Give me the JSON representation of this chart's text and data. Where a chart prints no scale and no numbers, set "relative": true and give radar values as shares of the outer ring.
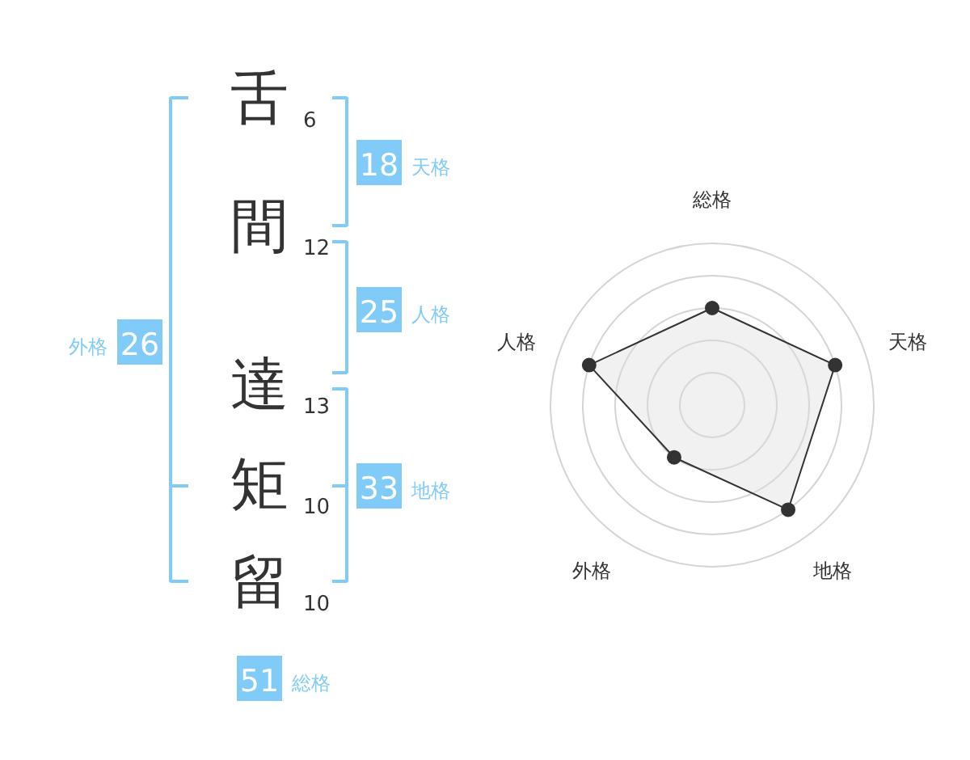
{
  "chart_data": [
    {
      "type": "other",
      "categories": [
        "舌",
        "間",
        "達",
        "矩",
        "留"
      ],
      "values": [
        6,
        12,
        13,
        10,
        10
      ],
      "data_labels": true,
      "annotations": [
        "18",
        "天格",
        "25",
        "人格",
        "33",
        "地格",
        "26",
        "外格",
        "51",
        "総格"
      ]
    },
    {
      "type": "radar",
      "relative": true,
      "categories": [
        "総格",
        "天格",
        "地格",
        "外格",
        "人格"
      ],
      "series": [
        {
          "color": "#333333",
          "values": [
            0.6,
            0.8,
            0.8,
            0.4,
            0.8
          ]
        }
      ],
      "grid": true,
      "marker": "circle"
    }
  ]
}
